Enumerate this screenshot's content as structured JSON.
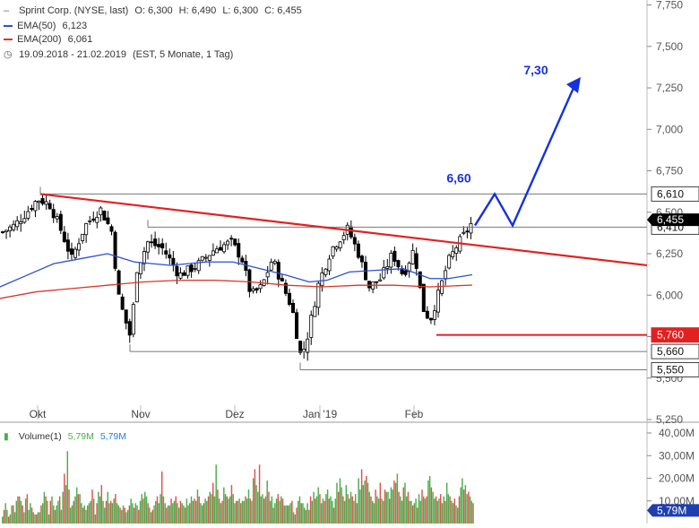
{
  "header": {
    "symbol_line": "Sprint Corp. (NYSE, last)",
    "ohlc": {
      "open": "O: 6,300",
      "high": "H: 6,490",
      "low": "L: 6,300",
      "close": "C: 6,455"
    },
    "ema50": {
      "label": "EMA(50)",
      "value": "6,123"
    },
    "ema200": {
      "label": "EMA(200)",
      "value": "6,061"
    },
    "range": {
      "dates": "19.09.2018 - 21.02.2019",
      "info": "(EST, 5 Monate, 1 Tag)"
    }
  },
  "volume_header": {
    "label": "Volume(1)",
    "v1": "5,79M",
    "v2": "5,79M"
  },
  "colors": {
    "up": "#4cae4c",
    "down": "#e0534f",
    "candle": "#000000",
    "ema50": "#2a4fd6",
    "ema200": "#d9362b",
    "trend": "#e32020",
    "arrow": "#1530e0",
    "level_box": "#e32020",
    "last_box": "#000000",
    "level_gray": "#777777"
  },
  "chart_data": [
    {
      "type": "candlestick",
      "yaxis": {
        "ticks": [
          "5,250",
          "5,500",
          "5,750",
          "6,000",
          "6,250",
          "6,500",
          "6,750",
          "7,000",
          "7,250",
          "7,500",
          "7,750"
        ],
        "ylim": [
          5.25,
          7.78
        ]
      },
      "xaxis": {
        "ticks": [
          "Okt",
          "Nov",
          "Dez",
          "Jan '19",
          "Feb"
        ]
      },
      "ohlc_last": {
        "open": 6.3,
        "high": 6.49,
        "low": 6.3,
        "close": 6.455
      },
      "series": [
        {
          "name": "EMA(50)",
          "last": 6.123
        },
        {
          "name": "EMA(200)",
          "last": 6.061
        }
      ],
      "levels": [
        {
          "label": "6,610",
          "value": 6.61,
          "style": "box"
        },
        {
          "label": "6,410",
          "value": 6.41,
          "style": "box"
        },
        {
          "label": "5,760",
          "value": 5.76,
          "style": "red"
        },
        {
          "label": "5,660",
          "value": 5.66,
          "style": "box"
        },
        {
          "label": "5,550",
          "value": 5.55,
          "style": "box"
        }
      ],
      "last_price_label": "6,455",
      "annotations": [
        {
          "text": "6,60",
          "value": 6.6
        },
        {
          "text": "7,30",
          "value": 7.3
        }
      ],
      "trendline": {
        "from": 6.61,
        "to": 6.18
      },
      "projection": [
        6.42,
        6.61,
        6.42,
        7.25
      ]
    },
    {
      "type": "bar",
      "title": "Volume(1)",
      "yaxis": {
        "ticks": [
          "40,00M",
          "30,00M",
          "20,00M",
          "10,00M"
        ],
        "ylim": [
          0,
          40
        ]
      },
      "last_label": "5,79M",
      "values": [
        3,
        6,
        9,
        6,
        3,
        4,
        8,
        8,
        5,
        10,
        12,
        12,
        10,
        8,
        5,
        11,
        13,
        6,
        9,
        7,
        5,
        4,
        4,
        5,
        5,
        8,
        9,
        14,
        12,
        10,
        4,
        10,
        12,
        8,
        6,
        8,
        10,
        12,
        6,
        14,
        22,
        17,
        32,
        15,
        7,
        8,
        10,
        12,
        16,
        13,
        13,
        9,
        7,
        8,
        6,
        8,
        9,
        10,
        15,
        11,
        4,
        9,
        14,
        12,
        17,
        10,
        7,
        10,
        14,
        9,
        10,
        9,
        11,
        13,
        9,
        8,
        7,
        6,
        8,
        7,
        5,
        6,
        8,
        11,
        9,
        7,
        9,
        8,
        6,
        10,
        13,
        11,
        14,
        12,
        9,
        7,
        5,
        6,
        8,
        10,
        12,
        9,
        13,
        23,
        12,
        9,
        7,
        8,
        8,
        11,
        9,
        10,
        12,
        9,
        7,
        10,
        9,
        8,
        7,
        11,
        8,
        9,
        12,
        10,
        11,
        10,
        15,
        12,
        9,
        8,
        9,
        11,
        10,
        12,
        14,
        13,
        18,
        12,
        26,
        15,
        11,
        9,
        10,
        16,
        13,
        12,
        11,
        12,
        17,
        13,
        9,
        10,
        10,
        11,
        9,
        10,
        10,
        12,
        11,
        15,
        11,
        10,
        20,
        24,
        17,
        14,
        26,
        12,
        13,
        11,
        12,
        19,
        14,
        10,
        12,
        7,
        9,
        11,
        13,
        10,
        12,
        11,
        8,
        8,
        8,
        8,
        9,
        10,
        5,
        4,
        7,
        10,
        12,
        9,
        9,
        7,
        6,
        9,
        6,
        12,
        10,
        14,
        11,
        12,
        16,
        13,
        9,
        11,
        10,
        13,
        15,
        11,
        12,
        10,
        7,
        11,
        18,
        14,
        20,
        16,
        12,
        10,
        17,
        13,
        11,
        14,
        12,
        10,
        13,
        9,
        20,
        15,
        24,
        17,
        19,
        21,
        18,
        14,
        12,
        10,
        9,
        15,
        12,
        11,
        18,
        11,
        10,
        15,
        14,
        14,
        11,
        16,
        15,
        19,
        18,
        22,
        14,
        12,
        10,
        16,
        18,
        12,
        14,
        10,
        10,
        8,
        9,
        11,
        7,
        13,
        10,
        15,
        12,
        11,
        12,
        19,
        21,
        16,
        14,
        11,
        12,
        10,
        11,
        13,
        9,
        12,
        10,
        18,
        13,
        12,
        10,
        9,
        11,
        8,
        7,
        12,
        16,
        20,
        15,
        17,
        13,
        14,
        12,
        10,
        9
      ]
    }
  ]
}
